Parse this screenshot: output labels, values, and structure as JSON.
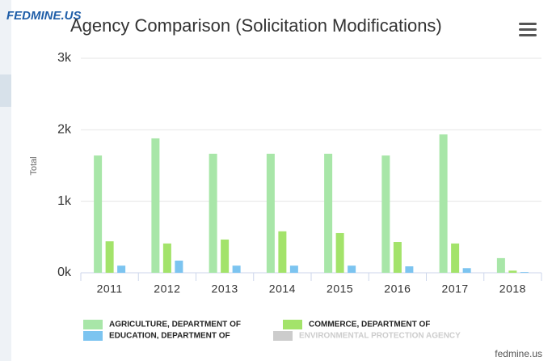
{
  "logo": "FEDMINE.US",
  "credit": "fedmine.us",
  "chart_data": {
    "type": "bar",
    "title": "Agency Comparison (Solicitation Modifications)",
    "y_axis_label": "Total",
    "categories": [
      "2011",
      "2012",
      "2013",
      "2014",
      "2015",
      "2016",
      "2017",
      "2018"
    ],
    "series": [
      {
        "name": "AGRICULTURE, DEPARTMENT OF",
        "color": "#a8e6a8",
        "values": [
          1640,
          1880,
          1665,
          1665,
          1665,
          1640,
          1935,
          205
        ]
      },
      {
        "name": "COMMERCE, DEPARTMENT OF",
        "color": "#a3e36a",
        "values": [
          440,
          410,
          465,
          580,
          555,
          430,
          410,
          30
        ]
      },
      {
        "name": "EDUCATION, DEPARTMENT OF",
        "color": "#7cc4f0",
        "values": [
          100,
          170,
          100,
          100,
          100,
          90,
          65,
          10
        ]
      },
      {
        "name": "ENVIRONMENTAL PROTECTION AGENCY",
        "color": "#cccccc",
        "visible": false,
        "values": [
          null,
          null,
          null,
          null,
          null,
          null,
          null,
          null
        ]
      }
    ],
    "ylim": [
      0,
      3000
    ],
    "yticks": [
      {
        "value": 0,
        "label": "0k"
      },
      {
        "value": 1000,
        "label": "1k"
      },
      {
        "value": 2000,
        "label": "2k"
      },
      {
        "value": 3000,
        "label": "3k"
      }
    ],
    "grid": true
  }
}
